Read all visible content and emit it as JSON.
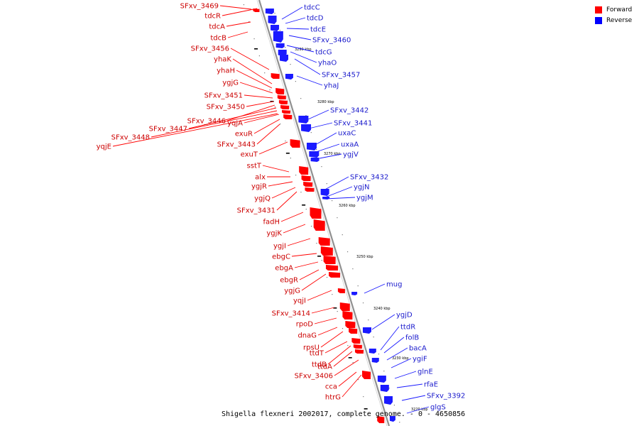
{
  "legend": [
    {
      "label": "Forward",
      "color": "#ff0000"
    },
    {
      "label": "Reverse",
      "color": "#0000ff"
    }
  ],
  "caption": "Shigella flexneri 2002017, complete genome. - 0 - 4650856",
  "colors": {
    "forward": "#ff0000",
    "reverse": "#1a1aff",
    "backbone": "#808080"
  },
  "ruler_labels": [
    "3290 kbp",
    "3280 kbp",
    "3270 kbp",
    "3260 kbp",
    "3250 kbp",
    "3240 kbp",
    "3230 kbp",
    "3220 kbp"
  ],
  "forward_labels": [
    "SFxv_3469",
    "tdcR",
    "tdcA",
    "tdcB",
    "SFxv_3456",
    "yhaK",
    "yhaH",
    "ygjG",
    "SFxv_3451",
    "SFxv_3450",
    "SFxv_3446",
    "SFxv_3447",
    "SFxv_3448",
    "yqjE",
    "yqjA",
    "exuR",
    "SFxv_3443",
    "exuT",
    "sstT",
    "alx",
    "ygjR",
    "ygjQ",
    "SFxv_3431",
    "fadH",
    "ygjK",
    "ygjI",
    "ebgC",
    "ebgA",
    "ebgR",
    "ygjG",
    "yqjI",
    "SFxv_3414",
    "rpoD",
    "dnaG",
    "rpsU",
    "ttdT",
    "ttdB",
    "ttdA",
    "SFxv_3406",
    "cca",
    "htrG"
  ],
  "reverse_labels": [
    "tdcC",
    "tdcD",
    "tdcE",
    "SFxv_3460",
    "tdcG",
    "yhaO",
    "SFxv_3457",
    "yhaJ",
    "SFxv_3442",
    "SFxv_3441",
    "uxaC",
    "uxaA",
    "ygjV",
    "SFxv_3432",
    "ygjN",
    "ygjM",
    "mug",
    "ygjD",
    "ttdR",
    "folB",
    "bacA",
    "ygiF",
    "glnE",
    "rfaE",
    "SFxv_3392",
    "glgS"
  ]
}
